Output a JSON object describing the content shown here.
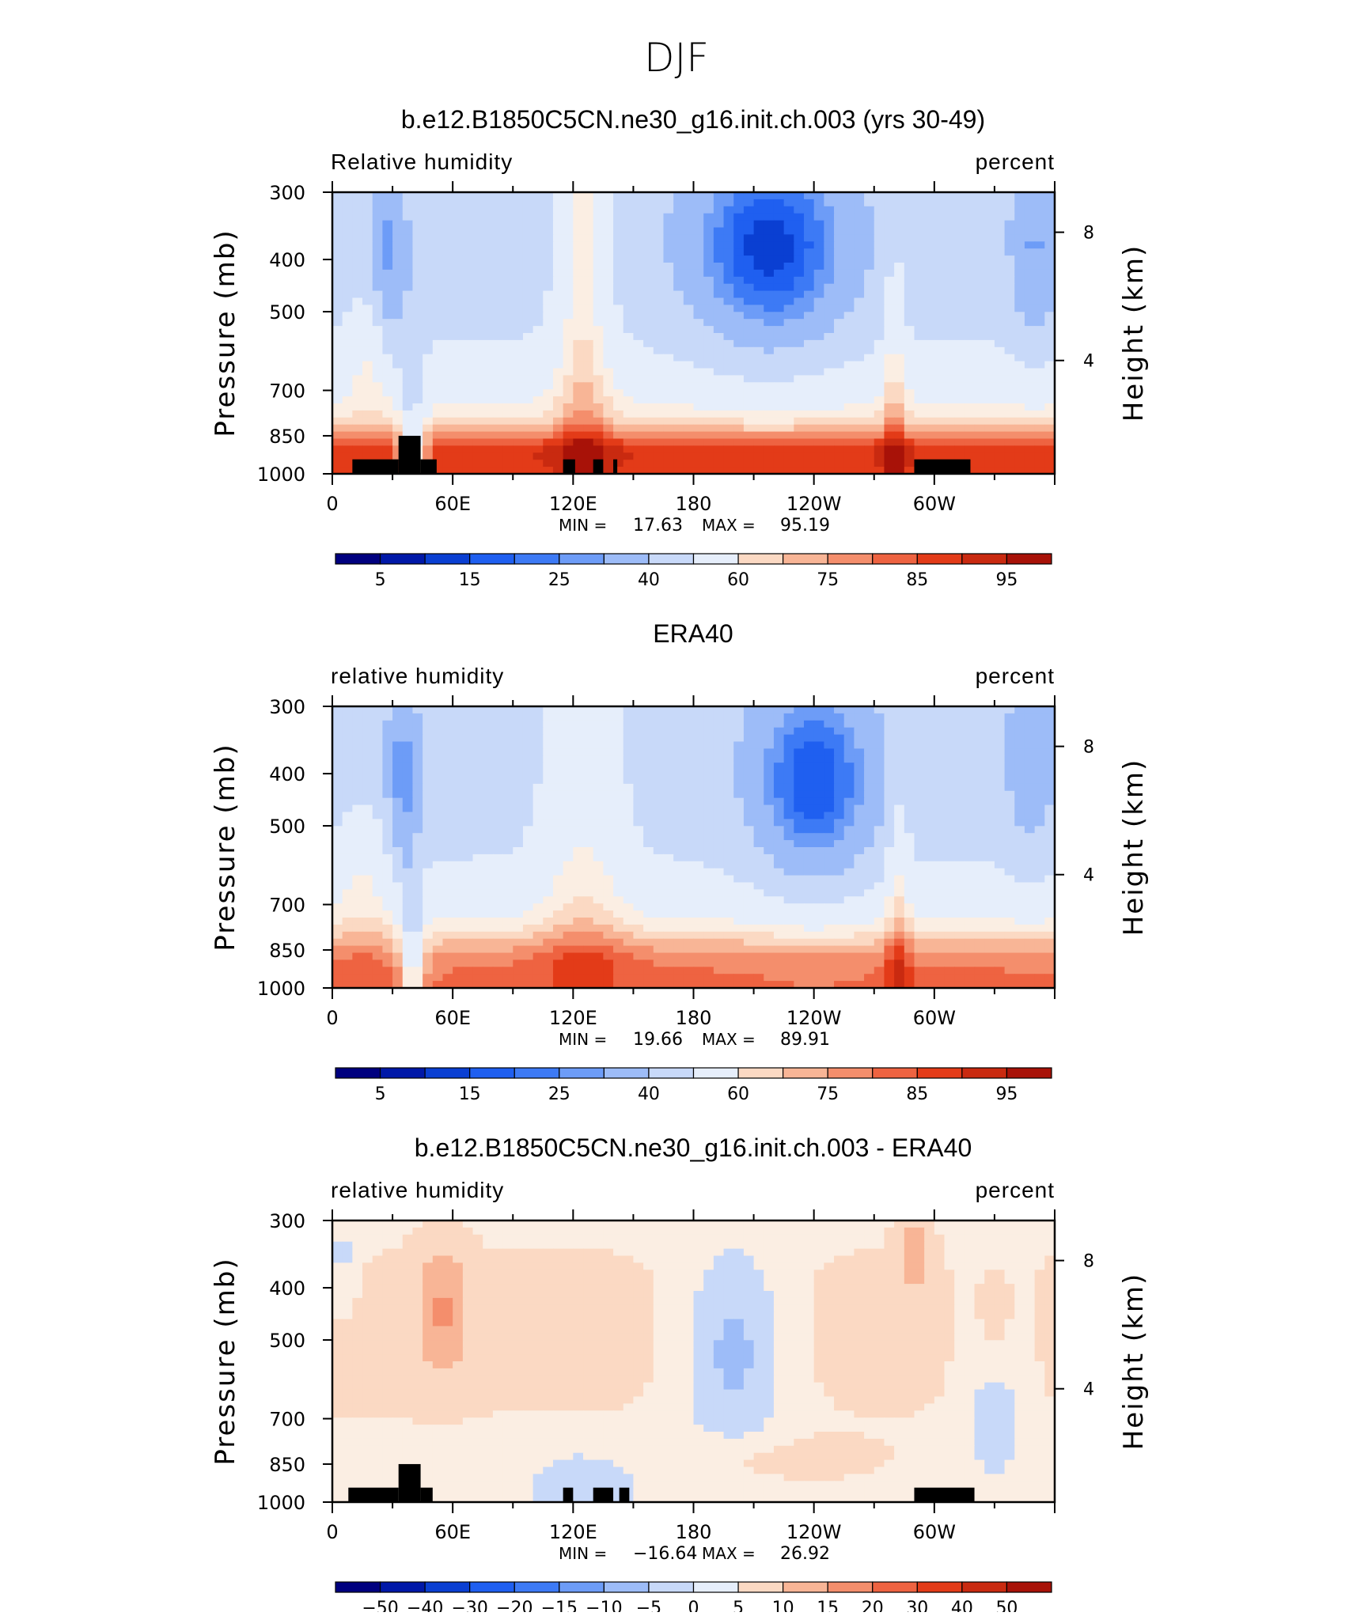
{
  "page_title": "DJF",
  "colors": {
    "blue_scale": [
      "#00007f",
      "#0018a8",
      "#0a3fd2",
      "#1f5ff0",
      "#3d7af5",
      "#6d9cf7",
      "#9dbcf8",
      "#c8d9f9",
      "#e6eefb"
    ],
    "neutral": "#fbeee3",
    "red_scale": [
      "#fbd9c3",
      "#f8b596",
      "#f48e6c",
      "#ee6341",
      "#e33b18",
      "#c92a10",
      "#a81208",
      "#800000"
    ]
  },
  "chart_data": [
    {
      "type": "heatmap",
      "title": "b.e12.B1850C5CN.ne30_g16.init.ch.003 (yrs 30-49)",
      "field_label": "Relative humidity",
      "units": "percent",
      "ylabel": "Pressure (mb)",
      "ylabel_right": "Height (km)",
      "x_ticks": [
        "0",
        "60E",
        "120E",
        "180",
        "120W",
        "60W"
      ],
      "y_ticks": [
        "300",
        "400",
        "500",
        "700",
        "850",
        "1000"
      ],
      "y_ticks_right": [
        "8",
        "4"
      ],
      "stats": {
        "min_label": "MIN =",
        "min": "17.63",
        "max_label": "MAX =",
        "max": "95.19"
      },
      "colorbar_ticks": [
        "5",
        "15",
        "25",
        "40",
        "60",
        "75",
        "85",
        "95"
      ],
      "colorbar_n": 16,
      "topography": [
        [
          10,
          33
        ],
        [
          33,
          44
        ],
        [
          44,
          52
        ],
        [
          115,
          121
        ],
        [
          130,
          135
        ],
        [
          140,
          142
        ],
        [
          290,
          318
        ]
      ],
      "topo_levels": [
        940,
        850,
        940,
        940,
        940,
        940,
        940
      ]
    },
    {
      "type": "heatmap",
      "title": "ERA40",
      "field_label": "relative humidity",
      "units": "percent",
      "ylabel": "Pressure (mb)",
      "ylabel_right": "Height (km)",
      "x_ticks": [
        "0",
        "60E",
        "120E",
        "180",
        "120W",
        "60W"
      ],
      "y_ticks": [
        "300",
        "400",
        "500",
        "700",
        "850",
        "1000"
      ],
      "y_ticks_right": [
        "8",
        "4"
      ],
      "stats": {
        "min_label": "MIN =",
        "min": "19.66",
        "max_label": "MAX =",
        "max": "89.91"
      },
      "colorbar_ticks": [
        "5",
        "15",
        "25",
        "40",
        "60",
        "75",
        "85",
        "95"
      ],
      "colorbar_n": 16,
      "topography": [],
      "topo_levels": []
    },
    {
      "type": "heatmap",
      "title": "b.e12.B1850C5CN.ne30_g16.init.ch.003 - ERA40",
      "field_label": "relative humidity",
      "units": "percent",
      "ylabel": "Pressure (mb)",
      "ylabel_right": "Height (km)",
      "x_ticks": [
        "0",
        "60E",
        "120E",
        "180",
        "120W",
        "60W"
      ],
      "y_ticks": [
        "300",
        "400",
        "500",
        "700",
        "850",
        "1000"
      ],
      "y_ticks_right": [
        "8",
        "4"
      ],
      "stats": {
        "min_label": "MIN =",
        "min": "−16.64",
        "max_label": "MAX =",
        "max": "26.92"
      },
      "colorbar_ticks": [
        "−50",
        "−40",
        "−30",
        "−20",
        "−15",
        "−10",
        "−5",
        "0",
        "5",
        "10",
        "15",
        "20",
        "30",
        "40",
        "50"
      ],
      "colorbar_n": 16,
      "topography": [
        [
          8,
          33
        ],
        [
          33,
          44
        ],
        [
          44,
          50
        ],
        [
          115,
          120
        ],
        [
          130,
          140
        ],
        [
          143,
          148
        ],
        [
          290,
          320
        ]
      ],
      "topo_levels": [
        940,
        850,
        940,
        940,
        940,
        940,
        940
      ]
    }
  ]
}
